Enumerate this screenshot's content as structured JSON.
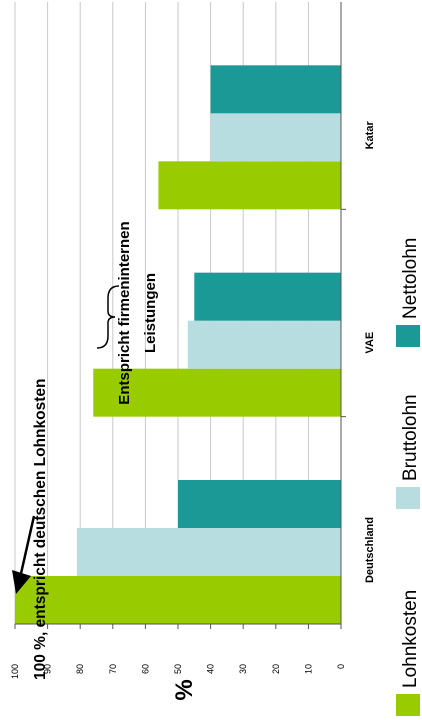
{
  "chart_data": {
    "type": "bar",
    "orientation": "rotated-90-ccw",
    "categories": [
      "Deutschland",
      "VAE",
      "Katar"
    ],
    "series": [
      {
        "name": "Lohnkosten",
        "color": "#99cc00",
        "values": [
          100,
          76,
          56
        ]
      },
      {
        "name": "Bruttolohn",
        "color": "#b7dde0",
        "values": [
          81,
          47,
          40
        ]
      },
      {
        "name": "Nettolohn",
        "color": "#1a9996",
        "values": [
          50,
          45,
          40
        ]
      }
    ],
    "ylabel": "%",
    "ylim": [
      0,
      100
    ],
    "yticks": [
      0,
      10,
      20,
      30,
      40,
      50,
      60,
      70,
      80,
      90,
      100
    ],
    "grid": true,
    "legend_position": "bottom",
    "annotations": [
      "100 %, entspricht deutschen Lohnkosten",
      "Entspricht firmeninternen",
      "Leistungen"
    ]
  }
}
